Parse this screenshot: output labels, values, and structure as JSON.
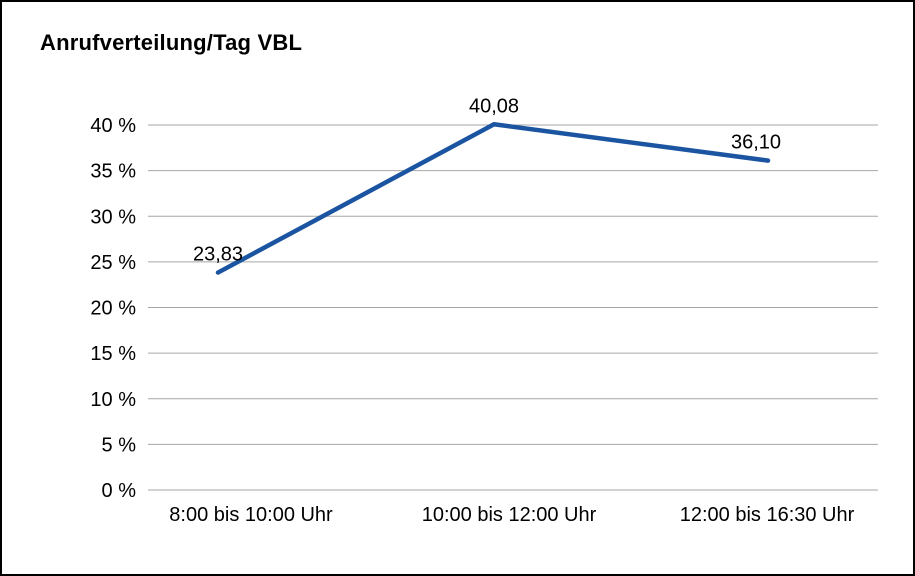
{
  "chart_data": {
    "type": "line",
    "title": "Anrufverteilung/Tag VBL",
    "categories": [
      "8:00 bis 10:00 Uhr",
      "10:00 bis 12:00 Uhr",
      "12:00 bis 16:30 Uhr"
    ],
    "values": [
      23.83,
      40.08,
      36.1
    ],
    "data_labels": [
      "23,83",
      "40,08",
      "36,10"
    ],
    "series_name": "Anrufverteilung",
    "xlabel": "",
    "ylabel": "",
    "ylim": [
      0,
      40
    ],
    "ytick_values": [
      0,
      5,
      10,
      15,
      20,
      25,
      30,
      35,
      40
    ],
    "ytick_labels": [
      "0 %",
      "5 %",
      "10 %",
      "15 %",
      "20 %",
      "25 %",
      "30 %",
      "35 %",
      "40 %"
    ],
    "grid": "horizontal",
    "legend": "none",
    "line_color": "#1B55A2",
    "grid_color": "#A6A6A6",
    "background_color": "#FFFFFF",
    "border_color": "#000000"
  }
}
